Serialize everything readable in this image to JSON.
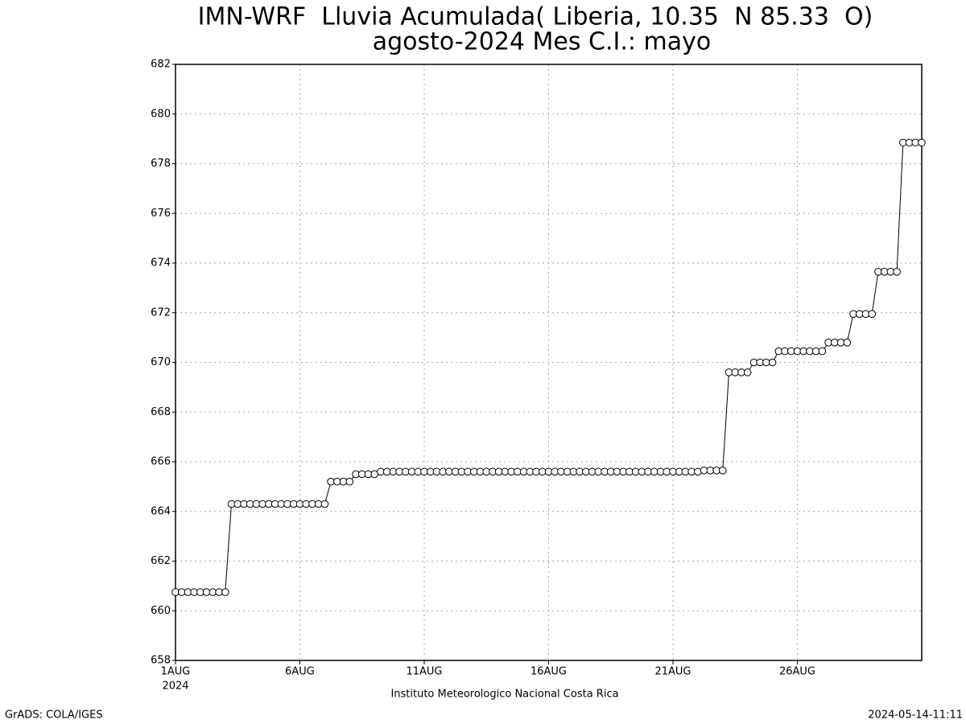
{
  "chart_data": {
    "type": "line",
    "title": "IMN-WRF  Lluvia Acumulada( Liberia, 10.35  N 85.33  O)",
    "subtitle": "agosto-2024 Mes C.I.: mayo",
    "x_label": "Instituto Meteorologico Nacional Costa Rica",
    "x_year": "2024",
    "footer_left": "GrADS: COLA/IGES",
    "footer_right": "2024-05-14-11:11",
    "color": "#000000",
    "marker": "circle",
    "grid": true,
    "xlim": [
      1,
      31
    ],
    "xticks": [
      {
        "value": 1,
        "label": "1AUG"
      },
      {
        "value": 6,
        "label": "6AUG"
      },
      {
        "value": 11,
        "label": "11AUG"
      },
      {
        "value": 16,
        "label": "16AUG"
      },
      {
        "value": 21,
        "label": "21AUG"
      },
      {
        "value": 26,
        "label": "26AUG"
      }
    ],
    "ylim": [
      658,
      682
    ],
    "yticks": [
      658,
      660,
      662,
      664,
      666,
      668,
      670,
      672,
      674,
      676,
      678,
      680,
      682
    ],
    "x": [
      1,
      1.25,
      1.5,
      1.75,
      2,
      2.25,
      2.5,
      2.75,
      3,
      3.25,
      3.5,
      3.75,
      4,
      4.25,
      4.5,
      4.75,
      5,
      5.25,
      5.5,
      5.75,
      6,
      6.25,
      6.5,
      6.75,
      7,
      7.25,
      7.5,
      7.75,
      8,
      8.25,
      8.5,
      8.75,
      9,
      9.25,
      9.5,
      9.75,
      10,
      10.25,
      10.5,
      10.75,
      11,
      11.25,
      11.5,
      11.75,
      12,
      12.25,
      12.5,
      12.75,
      13,
      13.25,
      13.5,
      13.75,
      14,
      14.25,
      14.5,
      14.75,
      15,
      15.25,
      15.5,
      15.75,
      16,
      16.25,
      16.5,
      16.75,
      17,
      17.25,
      17.5,
      17.75,
      18,
      18.25,
      18.5,
      18.75,
      19,
      19.25,
      19.5,
      19.75,
      20,
      20.25,
      20.5,
      20.75,
      21,
      21.25,
      21.5,
      21.75,
      22,
      22.25,
      22.5,
      22.75,
      23,
      23.25,
      23.5,
      23.75,
      24,
      24.25,
      24.5,
      24.75,
      25,
      25.25,
      25.5,
      25.75,
      26,
      26.25,
      26.5,
      26.75,
      27,
      27.25,
      27.5,
      27.75,
      28,
      28.25,
      28.5,
      28.75,
      29,
      29.25,
      29.5,
      29.75,
      30,
      30.25,
      30.5,
      30.75,
      31
    ],
    "values": [
      660.75,
      660.75,
      660.75,
      660.75,
      660.75,
      660.75,
      660.75,
      660.75,
      660.75,
      664.3,
      664.3,
      664.3,
      664.3,
      664.3,
      664.3,
      664.3,
      664.3,
      664.3,
      664.3,
      664.3,
      664.3,
      664.3,
      664.3,
      664.3,
      664.3,
      665.2,
      665.2,
      665.2,
      665.2,
      665.5,
      665.5,
      665.5,
      665.5,
      665.6,
      665.6,
      665.6,
      665.6,
      665.6,
      665.6,
      665.6,
      665.6,
      665.6,
      665.6,
      665.6,
      665.6,
      665.6,
      665.6,
      665.6,
      665.6,
      665.6,
      665.6,
      665.6,
      665.6,
      665.6,
      665.6,
      665.6,
      665.6,
      665.6,
      665.6,
      665.6,
      665.6,
      665.6,
      665.6,
      665.6,
      665.6,
      665.6,
      665.6,
      665.6,
      665.6,
      665.6,
      665.6,
      665.6,
      665.6,
      665.6,
      665.6,
      665.6,
      665.6,
      665.6,
      665.6,
      665.6,
      665.6,
      665.6,
      665.6,
      665.6,
      665.6,
      665.65,
      665.65,
      665.65,
      665.65,
      669.6,
      669.6,
      669.6,
      669.6,
      670,
      670,
      670,
      670,
      670.45,
      670.45,
      670.45,
      670.45,
      670.45,
      670.45,
      670.45,
      670.45,
      670.8,
      670.8,
      670.8,
      670.8,
      671.95,
      671.95,
      671.95,
      671.95,
      673.65,
      673.65,
      673.65,
      673.65,
      678.85,
      678.85,
      678.85,
      678.85
    ]
  }
}
